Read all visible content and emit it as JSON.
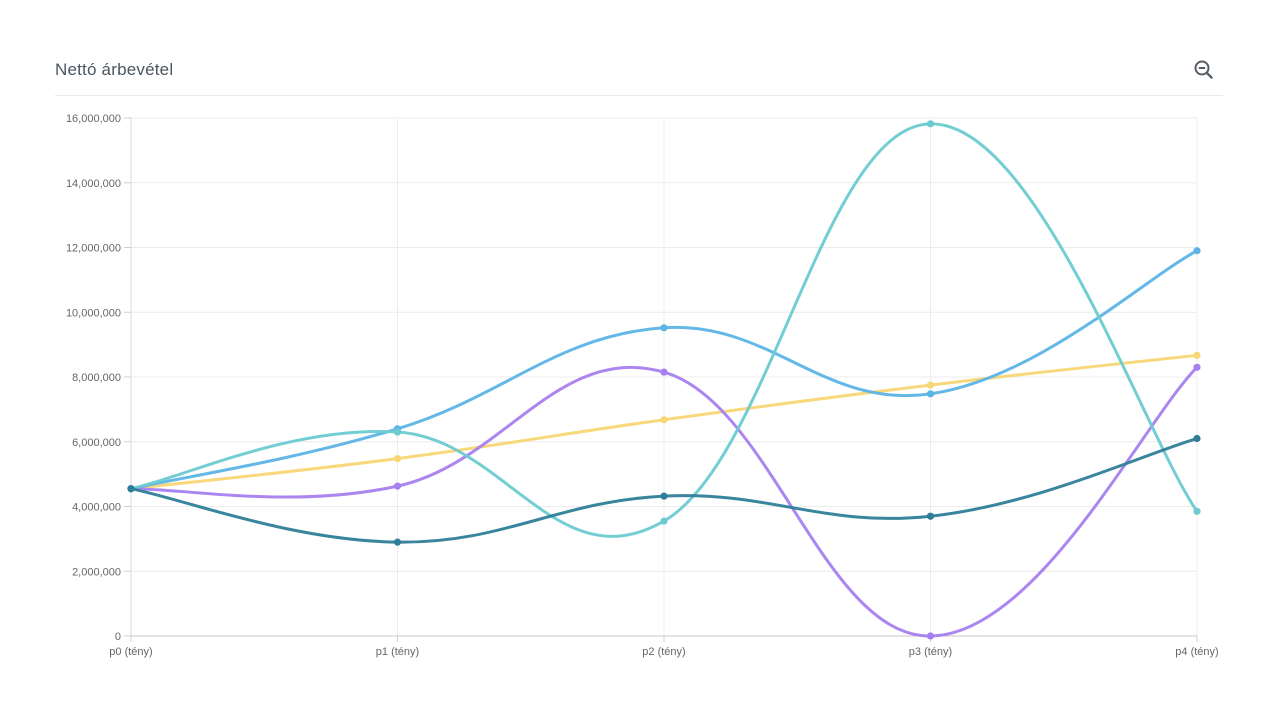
{
  "header": {
    "title": "Nettó árbevétel",
    "zoom_icon": "zoom-out-icon"
  },
  "chart_data": {
    "type": "line",
    "title": "Nettó árbevétel",
    "xlabel": "",
    "ylabel": "",
    "categories": [
      "p0 (tény)",
      "p1 (tény)",
      "p2 (tény)",
      "p3 (tény)",
      "p4 (tény)"
    ],
    "ylim": [
      0,
      16000000
    ],
    "yticks": [
      0,
      2000000,
      4000000,
      6000000,
      8000000,
      10000000,
      12000000,
      14000000,
      16000000
    ],
    "ytick_labels": [
      "0",
      "2,000,000",
      "4,000,000",
      "6,000,000",
      "8,000,000",
      "10,000,000",
      "12,000,000",
      "14,000,000",
      "16,000,000"
    ],
    "grid": true,
    "legend": "none",
    "series": [
      {
        "color": "#f8d673",
        "values": [
          4550000,
          5480000,
          6680000,
          7750000,
          8670000
        ]
      },
      {
        "color": "#5cb4e6",
        "values": [
          4550000,
          6400000,
          9520000,
          7480000,
          11900000
        ]
      },
      {
        "color": "#a77ff0",
        "values": [
          4550000,
          4630000,
          8150000,
          0,
          8300000
        ]
      },
      {
        "color": "#6ccbd1",
        "values": [
          4550000,
          6300000,
          3550000,
          15820000,
          3850000
        ]
      },
      {
        "color": "#2e7e98",
        "values": [
          4550000,
          2900000,
          4320000,
          3700000,
          6100000
        ]
      }
    ]
  }
}
